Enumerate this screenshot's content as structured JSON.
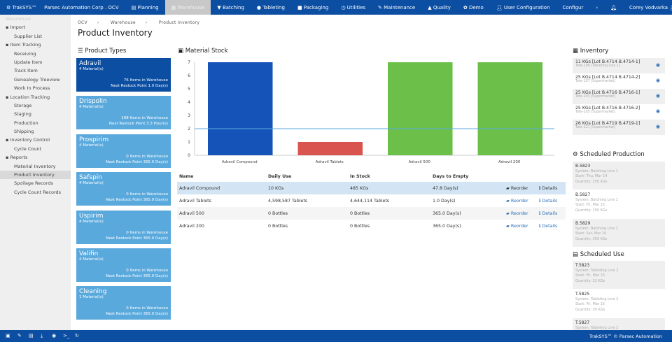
{
  "topnav": {
    "brand": "TrakSYS™",
    "site": "Parsec Automation Corp . OCV",
    "items": [
      "Planning",
      "Warehouse",
      "Batching",
      "Tableting",
      "Packaging",
      "Utilities",
      "Maintenance",
      "Quality",
      "Demo",
      "User Configuration",
      "Configur"
    ],
    "active": "Warehouse",
    "user": "Corey Vodvarka"
  },
  "sidebar": {
    "header": "Warehouse",
    "items": [
      {
        "label": "Import",
        "group": true
      },
      {
        "label": "Supplier List"
      },
      {
        "label": "Item Tracking",
        "group": true
      },
      {
        "label": "Receiving"
      },
      {
        "label": "Update Item"
      },
      {
        "label": "Track Item"
      },
      {
        "label": "Genealogy Treeview"
      },
      {
        "label": "Work In Process"
      },
      {
        "label": "Location Tracking",
        "group": true
      },
      {
        "label": "Storage"
      },
      {
        "label": "Staging"
      },
      {
        "label": "Production"
      },
      {
        "label": "Shipping"
      },
      {
        "label": "Inventory Control",
        "group": true
      },
      {
        "label": "Cycle Count"
      },
      {
        "label": "Reports",
        "group": true
      },
      {
        "label": "Material Inventory"
      },
      {
        "label": "Product Inventory",
        "selected": true
      },
      {
        "label": "Spoilage Records"
      },
      {
        "label": "Cycle Count Records"
      }
    ]
  },
  "breadcrumb": [
    "OCV",
    "Warehouse",
    "Product Inventory"
  ],
  "page_title": "Product Inventory",
  "product_types": {
    "title": "Product Types",
    "items": [
      {
        "name": "Adravil",
        "materials": "4 Material(s)",
        "items": "76 Items in Warehouse",
        "restock": "Next Restock Point 1.0 Day(s)",
        "active": true
      },
      {
        "name": "Drispolin",
        "materials": "4 Material(s)",
        "items": "108 Items in Warehouse",
        "restock": "Next Restock Point 3.3 Hour(s)"
      },
      {
        "name": "Prospirim",
        "materials": "4 Material(s)",
        "items": "0 Items in Warehouse",
        "restock": "Next Restock Point 365.0 Day(s)"
      },
      {
        "name": "Safspin",
        "materials": "4 Material(s)",
        "items": "0 Items in Warehouse",
        "restock": "Next Restock Point 365.0 Day(s)"
      },
      {
        "name": "Uspirim",
        "materials": "4 Material(s)",
        "items": "0 Items in Warehouse",
        "restock": "Next Restock Point 365.0 Day(s)"
      },
      {
        "name": "Valifin",
        "materials": "4 Material(s)",
        "items": "0 Items in Warehouse",
        "restock": "Next Restock Point 365.0 Day(s)"
      },
      {
        "name": "Cleaning",
        "materials": "1 Material(s)",
        "items": "0 Items in Warehouse",
        "restock": "Next Restock Point 365.0 Day(s)"
      }
    ]
  },
  "material_stock": {
    "title": "Material Stock"
  },
  "chart_data": {
    "type": "bar",
    "categories": [
      "Adravil Compound",
      "Adravil Tablets",
      "Adravil 500",
      "Adravil 200"
    ],
    "values": [
      7,
      1,
      7,
      7
    ],
    "colors": [
      "#1553b8",
      "#d9534f",
      "#6cc04a",
      "#6cc04a"
    ],
    "reference_line": 2,
    "ylim": [
      0,
      7
    ],
    "yticks": [
      0,
      1,
      2,
      3,
      4,
      5,
      6,
      7
    ]
  },
  "table": {
    "headers": [
      "Name",
      "Daily Use",
      "In Stock",
      "Days to Empty"
    ],
    "action_reorder": "Reorder",
    "action_details": "Details",
    "rows": [
      [
        "Adravil Compound",
        "10 KGs",
        "485 KGs",
        "47.8 Day(s)"
      ],
      [
        "Adravil Tablets",
        "4,598,587 Tablets",
        "4,644,114 Tablets",
        "1.0 Day(s)"
      ],
      [
        "Adravil 500",
        "0 Bottles",
        "0 Bottles",
        "365.0 Day(s)"
      ],
      [
        "Adravil 200",
        "0 Bottles",
        "0 Bottles",
        "365.0 Day(s)"
      ]
    ]
  },
  "inventory": {
    "title": "Inventory",
    "items": [
      {
        "main": "11 KGs [Lot B.4714 B.4714-1]",
        "sub": "Tote-106 [Tableting Line 1]"
      },
      {
        "main": "25 KGs [Lot B.4714 B.4714-2]",
        "sub": "Tote-107 [Supermarket]"
      },
      {
        "main": "25 KGs [Lot B.4716 B.4716-1]",
        "sub": "Tote-203 [Supermarket]"
      },
      {
        "main": "25 KGs [Lot B.4716 B.4716-2]",
        "sub": "Tote-205 [Supermarket]"
      },
      {
        "main": "26 KGs [Lot B.4719 B.4719-1]",
        "sub": "Tote-221 [Supermarket]"
      }
    ]
  },
  "scheduled_production": {
    "title": "Scheduled Production",
    "items": [
      {
        "id": "B.5823",
        "system": "System: Batching Line 1",
        "start": "Start: Thu, Mar 14",
        "qty": "Quantity: 250 KGs"
      },
      {
        "id": "B.5827",
        "system": "System: Batching Line 1",
        "start": "Start: Fri, Mar 15",
        "qty": "Quantity: 250 KGs"
      },
      {
        "id": "B.5829",
        "system": "System: Batching Line 1",
        "start": "Start: Sat, Mar 16",
        "qty": "Quantity: 350 KGs"
      }
    ]
  },
  "scheduled_use": {
    "title": "Scheduled Use",
    "items": [
      {
        "id": "T.5823",
        "system": "System: Tableting Line 2",
        "start": "Start: Fri, Mar 15",
        "qty": "Quantity: 22 KGs"
      },
      {
        "id": "T.5825",
        "system": "System: Tableting Line 2",
        "start": "Start: Fri, Mar 15",
        "qty": "Quantity: 30 KGs"
      },
      {
        "id": "T.5827",
        "system": "System: Tableting Line 2",
        "start": "",
        "qty": ""
      }
    ]
  },
  "footer": {
    "text": "TrakSYS™ © Parsec Automation"
  }
}
